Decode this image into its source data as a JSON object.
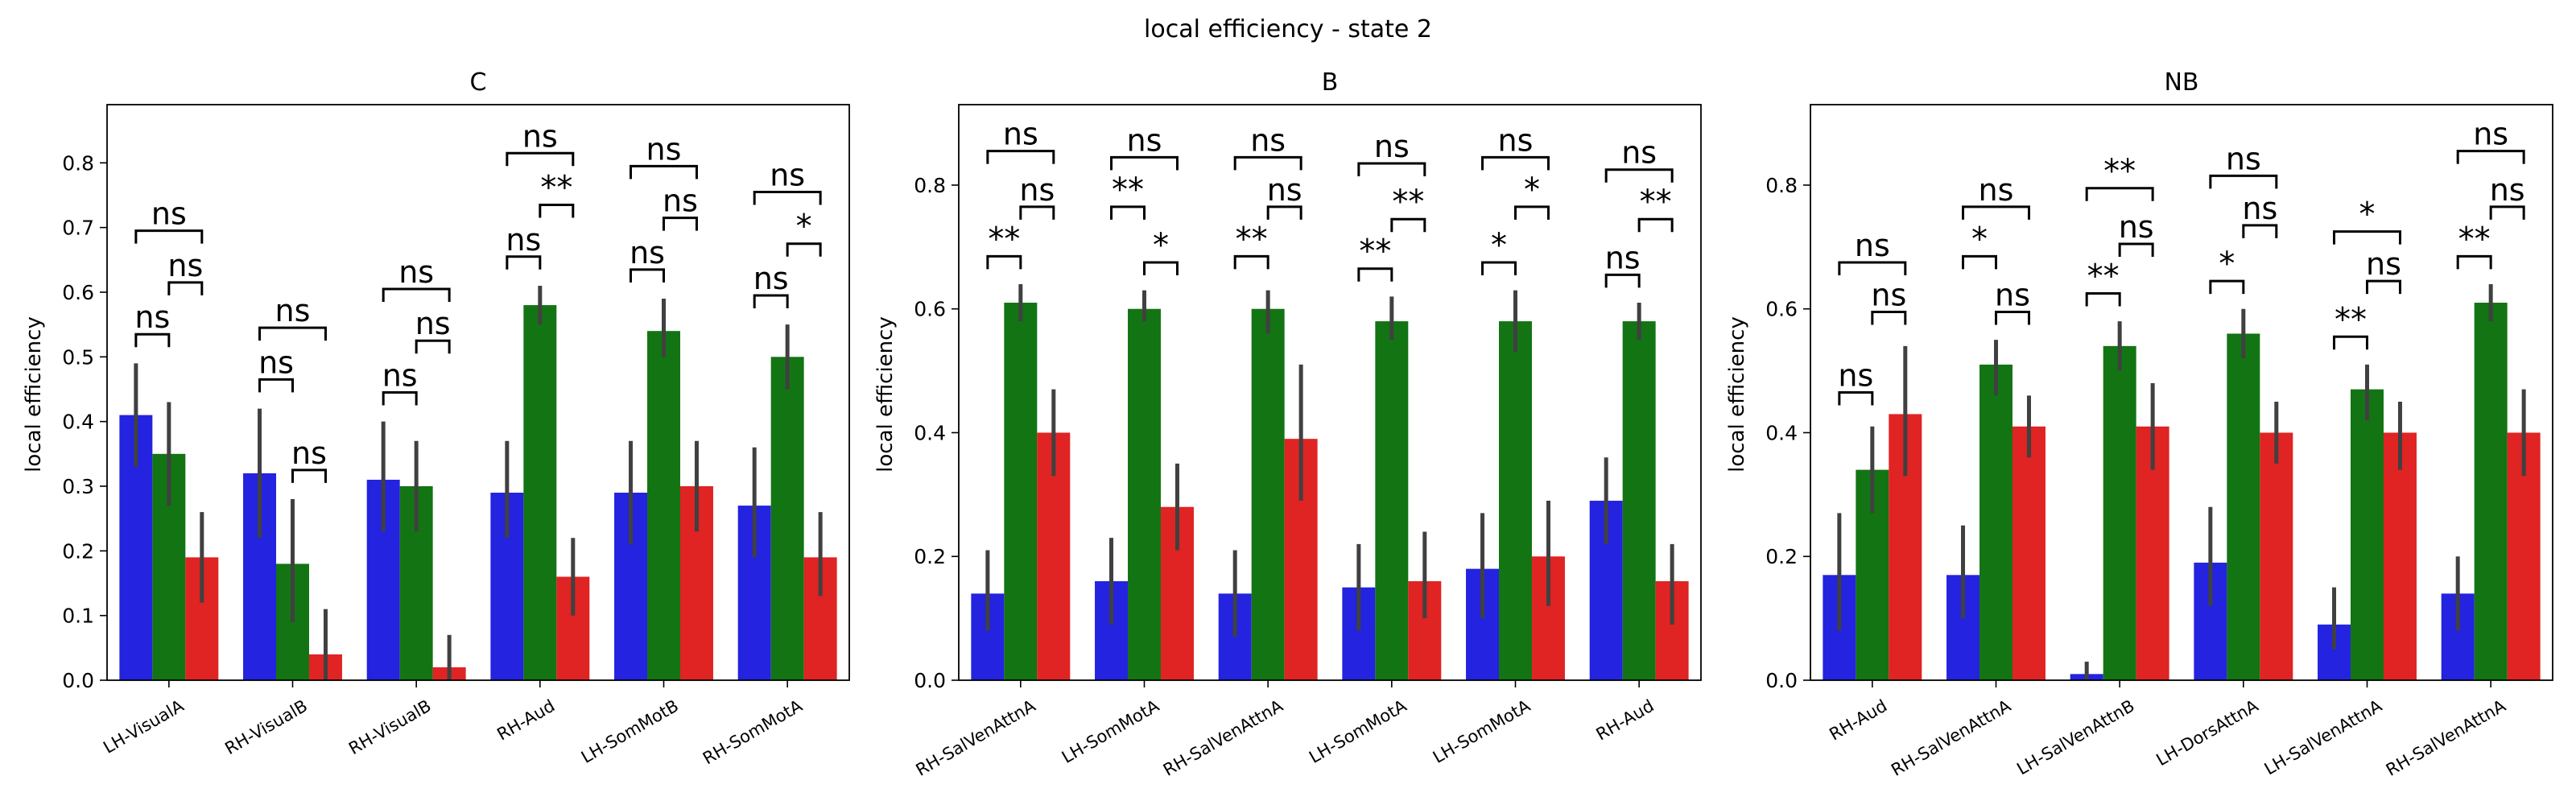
{
  "figure": {
    "suptitle": "local efficiency - state 2"
  },
  "colors": {
    "series_1": "#2323e0",
    "series_2": "#137413",
    "series_3": "#e02323",
    "error": "#404040"
  },
  "chart_data": [
    {
      "type": "bar",
      "title": "C",
      "ylabel": "local efficiency",
      "xlabel": "",
      "ylim": [
        0,
        0.89
      ],
      "yticks": [
        "0.0",
        "0.1",
        "0.2",
        "0.3",
        "0.4",
        "0.5",
        "0.6",
        "0.7",
        "0.8"
      ],
      "categories": [
        "LH-VisualA",
        "RH-VisualB",
        "RH-VisualB",
        "RH-Aud",
        "LH-SomMotB",
        "RH-SomMotA"
      ],
      "series": [
        {
          "values": [
            0.41,
            0.32,
            0.31,
            0.29,
            0.29,
            0.27
          ],
          "err_low": [
            0.33,
            0.22,
            0.23,
            0.22,
            0.21,
            0.19
          ],
          "err_high": [
            0.49,
            0.42,
            0.4,
            0.37,
            0.37,
            0.36
          ]
        },
        {
          "values": [
            0.35,
            0.18,
            0.3,
            0.58,
            0.54,
            0.5
          ],
          "err_low": [
            0.27,
            0.09,
            0.23,
            0.55,
            0.5,
            0.45
          ],
          "err_high": [
            0.43,
            0.28,
            0.37,
            0.61,
            0.59,
            0.55
          ]
        },
        {
          "values": [
            0.19,
            0.04,
            0.02,
            0.16,
            0.3,
            0.19
          ],
          "err_low": [
            0.12,
            0.0,
            0.0,
            0.1,
            0.23,
            0.13
          ],
          "err_high": [
            0.26,
            0.11,
            0.07,
            0.22,
            0.37,
            0.26
          ]
        }
      ],
      "annotations": [
        {
          "category": 0,
          "pair": "1-2",
          "label": "ns",
          "y": 0.535
        },
        {
          "category": 0,
          "pair": "2-3",
          "label": "ns",
          "y": 0.615
        },
        {
          "category": 0,
          "pair": "1-3",
          "label": "ns",
          "y": 0.695
        },
        {
          "category": 1,
          "pair": "1-2",
          "label": "ns",
          "y": 0.465
        },
        {
          "category": 1,
          "pair": "2-3",
          "label": "ns",
          "y": 0.325
        },
        {
          "category": 1,
          "pair": "1-3",
          "label": "ns",
          "y": 0.545
        },
        {
          "category": 2,
          "pair": "1-2",
          "label": "ns",
          "y": 0.445
        },
        {
          "category": 2,
          "pair": "2-3",
          "label": "ns",
          "y": 0.525
        },
        {
          "category": 2,
          "pair": "1-3",
          "label": "ns",
          "y": 0.605
        },
        {
          "category": 3,
          "pair": "1-2",
          "label": "ns",
          "y": 0.655
        },
        {
          "category": 3,
          "pair": "2-3",
          "label": "**",
          "y": 0.735
        },
        {
          "category": 3,
          "pair": "1-3",
          "label": "ns",
          "y": 0.815
        },
        {
          "category": 4,
          "pair": "1-2",
          "label": "ns",
          "y": 0.635
        },
        {
          "category": 4,
          "pair": "2-3",
          "label": "ns",
          "y": 0.715
        },
        {
          "category": 4,
          "pair": "1-3",
          "label": "ns",
          "y": 0.795
        },
        {
          "category": 5,
          "pair": "1-2",
          "label": "ns",
          "y": 0.595
        },
        {
          "category": 5,
          "pair": "2-3",
          "label": "*",
          "y": 0.675
        },
        {
          "category": 5,
          "pair": "1-3",
          "label": "ns",
          "y": 0.755
        }
      ]
    },
    {
      "type": "bar",
      "title": "B",
      "ylabel": "local efficiency",
      "xlabel": "",
      "ylim": [
        0,
        0.93
      ],
      "yticks": [
        "0.0",
        "0.2",
        "0.4",
        "0.6",
        "0.8"
      ],
      "categories": [
        "RH-SalVenAttnA",
        "LH-SomMotA",
        "RH-SalVenAttnA",
        "LH-SomMotA",
        "LH-SomMotA",
        "RH-Aud"
      ],
      "series": [
        {
          "values": [
            0.14,
            0.16,
            0.14,
            0.15,
            0.18,
            0.29
          ],
          "err_low": [
            0.08,
            0.09,
            0.07,
            0.08,
            0.1,
            0.22
          ],
          "err_high": [
            0.21,
            0.23,
            0.21,
            0.22,
            0.27,
            0.36
          ]
        },
        {
          "values": [
            0.61,
            0.6,
            0.6,
            0.58,
            0.58,
            0.58
          ],
          "err_low": [
            0.58,
            0.58,
            0.56,
            0.55,
            0.53,
            0.55
          ],
          "err_high": [
            0.64,
            0.63,
            0.63,
            0.62,
            0.63,
            0.61
          ]
        },
        {
          "values": [
            0.4,
            0.28,
            0.39,
            0.16,
            0.2,
            0.16
          ],
          "err_low": [
            0.33,
            0.21,
            0.29,
            0.1,
            0.12,
            0.09
          ],
          "err_high": [
            0.47,
            0.35,
            0.51,
            0.24,
            0.29,
            0.22
          ]
        }
      ],
      "annotations": [
        {
          "category": 0,
          "pair": "1-2",
          "label": "**",
          "y": 0.685
        },
        {
          "category": 0,
          "pair": "2-3",
          "label": "ns",
          "y": 0.765
        },
        {
          "category": 0,
          "pair": "1-3",
          "label": "ns",
          "y": 0.855
        },
        {
          "category": 1,
          "pair": "1-2",
          "label": "**",
          "y": 0.765
        },
        {
          "category": 1,
          "pair": "2-3",
          "label": "*",
          "y": 0.675
        },
        {
          "category": 1,
          "pair": "1-3",
          "label": "ns",
          "y": 0.845
        },
        {
          "category": 2,
          "pair": "1-2",
          "label": "**",
          "y": 0.685
        },
        {
          "category": 2,
          "pair": "2-3",
          "label": "ns",
          "y": 0.765
        },
        {
          "category": 2,
          "pair": "1-3",
          "label": "ns",
          "y": 0.845
        },
        {
          "category": 3,
          "pair": "1-2",
          "label": "**",
          "y": 0.665
        },
        {
          "category": 3,
          "pair": "2-3",
          "label": "**",
          "y": 0.745
        },
        {
          "category": 3,
          "pair": "1-3",
          "label": "ns",
          "y": 0.835
        },
        {
          "category": 4,
          "pair": "1-2",
          "label": "*",
          "y": 0.675
        },
        {
          "category": 4,
          "pair": "2-3",
          "label": "*",
          "y": 0.765
        },
        {
          "category": 4,
          "pair": "1-3",
          "label": "ns",
          "y": 0.845
        },
        {
          "category": 5,
          "pair": "1-2",
          "label": "ns",
          "y": 0.655
        },
        {
          "category": 5,
          "pair": "2-3",
          "label": "**",
          "y": 0.745
        },
        {
          "category": 5,
          "pair": "1-3",
          "label": "ns",
          "y": 0.825
        }
      ]
    },
    {
      "type": "bar",
      "title": "NB",
      "ylabel": "local efficiency",
      "xlabel": "",
      "ylim": [
        0,
        0.93
      ],
      "yticks": [
        "0.0",
        "0.2",
        "0.4",
        "0.6",
        "0.8"
      ],
      "categories": [
        "RH-Aud",
        "RH-SalVenAttnA",
        "LH-SalVenAttnB",
        "LH-DorsAttnA",
        "LH-SalVenAttnA",
        "RH-SalVenAttnA"
      ],
      "series": [
        {
          "values": [
            0.17,
            0.17,
            0.01,
            0.19,
            0.09,
            0.14
          ],
          "err_low": [
            0.08,
            0.1,
            0.0,
            0.12,
            0.05,
            0.08
          ],
          "err_high": [
            0.27,
            0.25,
            0.03,
            0.28,
            0.15,
            0.2
          ]
        },
        {
          "values": [
            0.34,
            0.51,
            0.54,
            0.56,
            0.47,
            0.61
          ],
          "err_low": [
            0.27,
            0.46,
            0.5,
            0.52,
            0.42,
            0.58
          ],
          "err_high": [
            0.41,
            0.55,
            0.58,
            0.6,
            0.51,
            0.64
          ]
        },
        {
          "values": [
            0.43,
            0.41,
            0.41,
            0.4,
            0.4,
            0.4
          ],
          "err_low": [
            0.33,
            0.36,
            0.34,
            0.35,
            0.34,
            0.33
          ],
          "err_high": [
            0.54,
            0.46,
            0.48,
            0.45,
            0.45,
            0.47
          ]
        }
      ],
      "annotations": [
        {
          "category": 0,
          "pair": "1-2",
          "label": "ns",
          "y": 0.465
        },
        {
          "category": 0,
          "pair": "2-3",
          "label": "ns",
          "y": 0.595
        },
        {
          "category": 0,
          "pair": "1-3",
          "label": "ns",
          "y": 0.675
        },
        {
          "category": 1,
          "pair": "1-2",
          "label": "*",
          "y": 0.685
        },
        {
          "category": 1,
          "pair": "2-3",
          "label": "ns",
          "y": 0.595
        },
        {
          "category": 1,
          "pair": "1-3",
          "label": "ns",
          "y": 0.765
        },
        {
          "category": 2,
          "pair": "1-2",
          "label": "**",
          "y": 0.625
        },
        {
          "category": 2,
          "pair": "2-3",
          "label": "ns",
          "y": 0.705
        },
        {
          "category": 2,
          "pair": "1-3",
          "label": "**",
          "y": 0.795
        },
        {
          "category": 3,
          "pair": "1-2",
          "label": "*",
          "y": 0.645
        },
        {
          "category": 3,
          "pair": "2-3",
          "label": "ns",
          "y": 0.735
        },
        {
          "category": 3,
          "pair": "1-3",
          "label": "ns",
          "y": 0.815
        },
        {
          "category": 4,
          "pair": "1-2",
          "label": "**",
          "y": 0.555
        },
        {
          "category": 4,
          "pair": "2-3",
          "label": "ns",
          "y": 0.645
        },
        {
          "category": 4,
          "pair": "1-3",
          "label": "*",
          "y": 0.725
        },
        {
          "category": 5,
          "pair": "1-2",
          "label": "**",
          "y": 0.685
        },
        {
          "category": 5,
          "pair": "2-3",
          "label": "ns",
          "y": 0.765
        },
        {
          "category": 5,
          "pair": "1-3",
          "label": "ns",
          "y": 0.855
        }
      ]
    }
  ]
}
